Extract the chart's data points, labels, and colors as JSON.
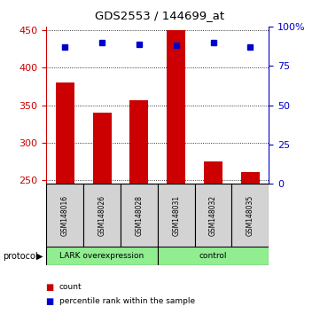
{
  "title": "GDS2553 / 144699_at",
  "samples": [
    "GSM148016",
    "GSM148026",
    "GSM148028",
    "GSM148031",
    "GSM148032",
    "GSM148035"
  ],
  "counts": [
    380,
    340,
    357,
    450,
    275,
    261
  ],
  "percentile_ranks": [
    87,
    90,
    89,
    88,
    90,
    87
  ],
  "ylim_left": [
    245,
    455
  ],
  "ylim_right": [
    0,
    100
  ],
  "left_yticks": [
    250,
    300,
    350,
    400,
    450
  ],
  "right_yticks": [
    0,
    25,
    50,
    75,
    100
  ],
  "right_yticklabels": [
    "0",
    "25",
    "50",
    "75",
    "100%"
  ],
  "groups": [
    {
      "label": "LARK overexpression",
      "indices": [
        0,
        1,
        2
      ]
    },
    {
      "label": "control",
      "indices": [
        3,
        4,
        5
      ]
    }
  ],
  "group_colors": [
    "#90ee90",
    "#90ee90"
  ],
  "bar_color": "#cc0000",
  "square_color": "#0000cc",
  "background_color": "#ffffff",
  "left_axis_color": "#cc0000",
  "right_axis_color": "#0000cc",
  "bar_width": 0.5,
  "legend_count_label": "count",
  "legend_pct_label": "percentile rank within the sample",
  "protocol_label": "protocol"
}
